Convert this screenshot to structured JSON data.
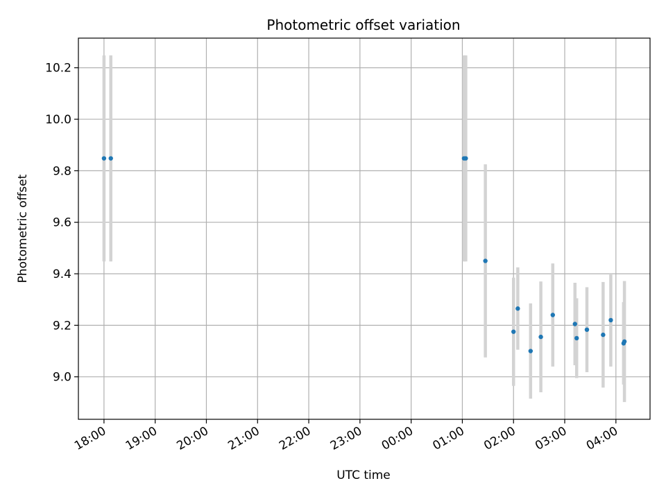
{
  "chart_data": {
    "type": "scatter",
    "title": "Photometric offset variation",
    "xlabel": "UTC time",
    "ylabel": "Photometric offset",
    "x_is_time": true,
    "xlim": [
      "17:30",
      "04:40"
    ],
    "ylim": [
      8.835,
      10.315
    ],
    "x_ticks": [
      "18:00",
      "19:00",
      "20:00",
      "21:00",
      "22:00",
      "23:00",
      "00:00",
      "01:00",
      "02:00",
      "03:00",
      "04:00"
    ],
    "y_ticks": [
      "9.0",
      "9.2",
      "9.4",
      "9.6",
      "9.8",
      "10.0",
      "10.2"
    ],
    "grid": true,
    "point_color": "#1f77b4",
    "errorbar_color": "#d3d3d3",
    "series": [
      {
        "points": [
          {
            "time": "18:00",
            "y": 9.848,
            "yerr": 0.4
          },
          {
            "time": "18:08",
            "y": 9.848,
            "yerr": 0.4
          },
          {
            "time": "01:02",
            "y": 9.848,
            "yerr": 0.4
          },
          {
            "time": "01:04",
            "y": 9.848,
            "yerr": 0.4
          },
          {
            "time": "01:27",
            "y": 9.45,
            "yerr": 0.375
          },
          {
            "time": "02:00",
            "y": 9.175,
            "yerr": 0.21
          },
          {
            "time": "02:05",
            "y": 9.265,
            "yerr": 0.16
          },
          {
            "time": "02:20",
            "y": 9.1,
            "yerr": 0.185
          },
          {
            "time": "02:32",
            "y": 9.155,
            "yerr": 0.215
          },
          {
            "time": "02:46",
            "y": 9.24,
            "yerr": 0.2
          },
          {
            "time": "03:12",
            "y": 9.205,
            "yerr": 0.16
          },
          {
            "time": "03:14",
            "y": 9.15,
            "yerr": 0.155
          },
          {
            "time": "03:26",
            "y": 9.183,
            "yerr": 0.165
          },
          {
            "time": "03:45",
            "y": 9.163,
            "yerr": 0.205
          },
          {
            "time": "03:54",
            "y": 9.22,
            "yerr": 0.18
          },
          {
            "time": "04:09",
            "y": 9.13,
            "yerr": 0.16
          },
          {
            "time": "04:10",
            "y": 9.137,
            "yerr": 0.235
          }
        ]
      }
    ]
  }
}
